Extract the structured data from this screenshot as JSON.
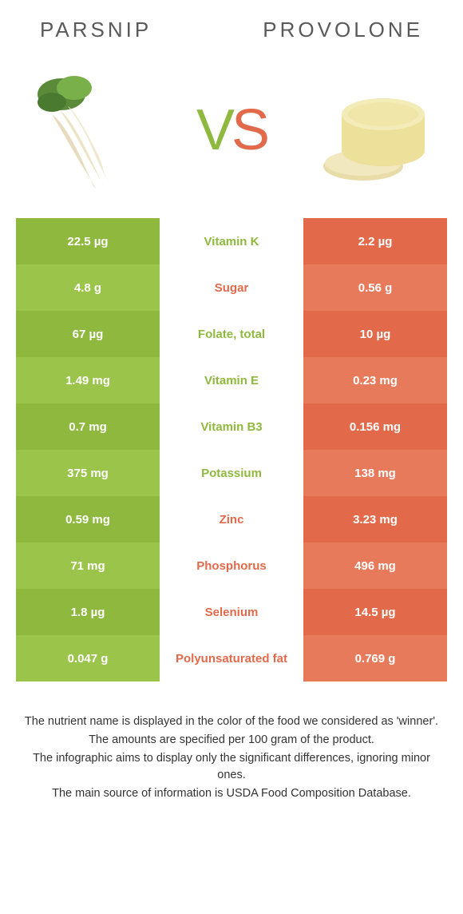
{
  "header": {
    "left_title": "Parsnip",
    "right_title": "Provolone"
  },
  "vs": {
    "v": "V",
    "s": "S"
  },
  "colors": {
    "left_a": "#8fb93e",
    "left_b": "#9ac54a",
    "right_a": "#e26a4a",
    "right_b": "#e87a5c",
    "green_text": "#8fb93e",
    "orange_text": "#e26a4a"
  },
  "rows": [
    {
      "left": "22.5 µg",
      "label": "Vitamin K",
      "right": "2.2 µg",
      "winner": "left"
    },
    {
      "left": "4.8 g",
      "label": "Sugar",
      "right": "0.56 g",
      "winner": "right"
    },
    {
      "left": "67 µg",
      "label": "Folate, total",
      "right": "10 µg",
      "winner": "left"
    },
    {
      "left": "1.49 mg",
      "label": "Vitamin E",
      "right": "0.23 mg",
      "winner": "left"
    },
    {
      "left": "0.7 mg",
      "label": "Vitamin B3",
      "right": "0.156 mg",
      "winner": "left"
    },
    {
      "left": "375 mg",
      "label": "Potassium",
      "right": "138 mg",
      "winner": "left"
    },
    {
      "left": "0.59 mg",
      "label": "Zinc",
      "right": "3.23 mg",
      "winner": "right"
    },
    {
      "left": "71 mg",
      "label": "Phosphorus",
      "right": "496 mg",
      "winner": "right"
    },
    {
      "left": "1.8 µg",
      "label": "Selenium",
      "right": "14.5 µg",
      "winner": "right"
    },
    {
      "left": "0.047 g",
      "label": "Polyunsaturated fat",
      "right": "0.769 g",
      "winner": "right"
    }
  ],
  "footnotes": [
    "The nutrient name is displayed in the color of the food we considered as 'winner'.",
    "The amounts are specified per 100 gram of the product.",
    "The infographic aims to display only the significant differences, ignoring minor ones.",
    "The main source of information is USDA Food Composition Database."
  ]
}
